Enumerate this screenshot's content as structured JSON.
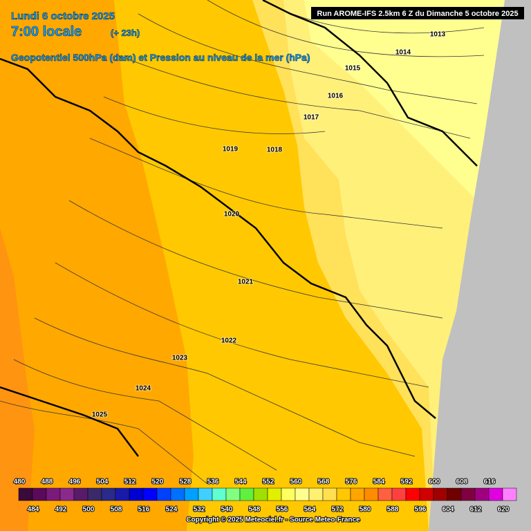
{
  "header": {
    "date": "Lundi 6 octobre 2025",
    "time": "7:00 locale",
    "lead": "(+ 23h)",
    "parameter": "Geopotentiel 500hPa (dam) et Pression au niveau de la mer (hPa)",
    "run": "Run AROME-IFS 2.5km 6 Z du Dimanche 5 octobre 2025"
  },
  "isobars": [
    "1013",
    "1014",
    "1015",
    "1016",
    "1017",
    "1019",
    "1018",
    "1020",
    "1021",
    "1022",
    "1023",
    "1024",
    "1025"
  ],
  "colorbar": {
    "values": [
      480,
      484,
      488,
      492,
      496,
      500,
      504,
      508,
      512,
      516,
      520,
      524,
      528,
      532,
      536,
      540,
      544,
      548,
      552,
      556,
      560,
      564,
      568,
      572,
      576,
      580,
      584,
      588,
      592,
      596,
      600,
      604,
      608,
      612,
      616,
      620
    ],
    "colors": [
      "#3a0a3a",
      "#5a0a5a",
      "#7a1a7a",
      "#8a2a8a",
      "#5a1a6a",
      "#3a2a6a",
      "#2a2a8a",
      "#1a1aaa",
      "#0000d0",
      "#0000ff",
      "#0040ff",
      "#0070ff",
      "#00a0ff",
      "#40d0ff",
      "#60ffd0",
      "#80ff80",
      "#60f040",
      "#a0e000",
      "#e0f000",
      "#ffff60",
      "#ffff90",
      "#fff070",
      "#ffe050",
      "#ffc800",
      "#ffa500",
      "#ff8c00",
      "#ff6040",
      "#ff4040",
      "#ff0000",
      "#d00000",
      "#a00000",
      "#700000",
      "#800040",
      "#a00080",
      "#e000e0",
      "#ff80ff"
    ]
  },
  "footer": "Copyright © 2025 Meteociel.fr - Source Meteo-France"
}
